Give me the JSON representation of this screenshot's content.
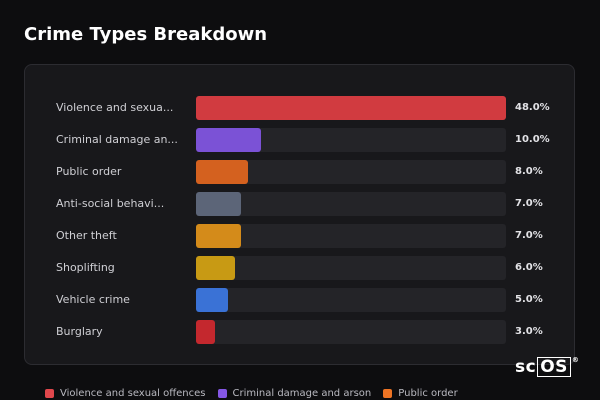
{
  "title": "Crime Types Breakdown",
  "chart_data": {
    "type": "bar",
    "orientation": "horizontal",
    "categories": [
      "Violence and sexua...",
      "Criminal damage an...",
      "Public order",
      "Anti-social behavi...",
      "Other theft",
      "Shoplifting",
      "Vehicle crime",
      "Burglary"
    ],
    "values": [
      48.0,
      10.0,
      8.0,
      7.0,
      7.0,
      6.0,
      5.0,
      3.0
    ],
    "value_labels": [
      "48.0%",
      "10.0%",
      "8.0%",
      "7.0%",
      "7.0%",
      "6.0%",
      "5.0%",
      "3.0%"
    ],
    "colors": [
      "#d13b40",
      "#7b52d6",
      "#d4611f",
      "#5c6578",
      "#d48b1a",
      "#c89a14",
      "#3a72d6",
      "#c4282e"
    ],
    "xlim": [
      0,
      48
    ],
    "legend": [
      {
        "label": "Violence and sexual offences",
        "color": "#e0474c"
      },
      {
        "label": "Criminal damage and arson",
        "color": "#8557e6"
      },
      {
        "label": "Public order",
        "color": "#ee7424"
      }
    ],
    "legend_position": "bottom-left"
  },
  "logo": {
    "prefix": "sc",
    "boxed": "OS",
    "mark": "®"
  }
}
